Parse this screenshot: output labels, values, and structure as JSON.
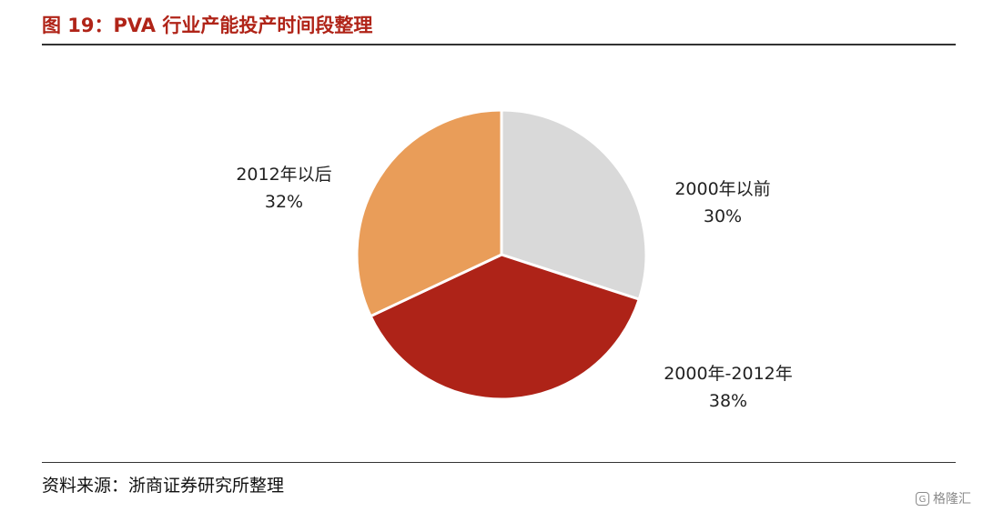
{
  "header": {
    "figure_title": "图 19：PVA 行业产能投产时间段整理"
  },
  "footer": {
    "source": "资料来源：浙商证券研究所整理",
    "watermark_logo": "G",
    "watermark_text": "格隆汇"
  },
  "chart_data": {
    "type": "pie",
    "title": "",
    "slices": [
      {
        "label": "2000年以前",
        "value": 30,
        "display": "30%",
        "color": "#d9d9d9"
      },
      {
        "label": "2000年-2012年",
        "value": 38,
        "display": "38%",
        "color": "#ae2318"
      },
      {
        "label": "2012年以后",
        "value": 32,
        "display": "32%",
        "color": "#e99d59"
      }
    ],
    "start": "12 o'clock",
    "direction": "clockwise",
    "legend": "none",
    "labels": "outside, category name above percentage"
  }
}
